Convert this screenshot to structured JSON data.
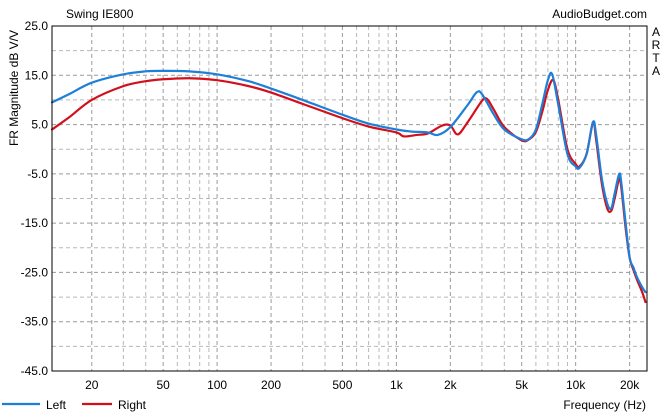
{
  "chart_data": {
    "type": "line",
    "title": "Swing IE800",
    "watermark": "AudioBudget.com",
    "side_label": "ARTA",
    "xlabel": "Frequency (Hz)",
    "ylabel": "FR Magnitude dB V/V",
    "x_scale": "log",
    "xlim": [
      12,
      25000
    ],
    "ylim": [
      -45,
      25
    ],
    "grid": true,
    "legend_position": "bottom-left",
    "y_ticks": [
      "25.0",
      "15.0",
      "5.0",
      "-5.0",
      "-15.0",
      "-25.0",
      "-35.0",
      "-45.0"
    ],
    "y_tick_values": [
      25,
      15,
      5,
      -5,
      -15,
      -25,
      -35,
      -45
    ],
    "x_ticks": [
      "20",
      "50",
      "100",
      "200",
      "500",
      "1k",
      "2k",
      "5k",
      "10k",
      "20k"
    ],
    "x_tick_values": [
      20,
      50,
      100,
      200,
      500,
      1000,
      2000,
      5000,
      10000,
      20000
    ],
    "series": [
      {
        "name": "Left",
        "color": "#1e7fd8",
        "points": [
          [
            12,
            9.5
          ],
          [
            15,
            11.2
          ],
          [
            20,
            13.5
          ],
          [
            30,
            15.2
          ],
          [
            40,
            15.8
          ],
          [
            50,
            15.9
          ],
          [
            70,
            15.8
          ],
          [
            100,
            15.2
          ],
          [
            150,
            13.8
          ],
          [
            200,
            12.3
          ],
          [
            300,
            10.0
          ],
          [
            500,
            7.0
          ],
          [
            700,
            5.2
          ],
          [
            1000,
            4.0
          ],
          [
            1200,
            3.6
          ],
          [
            1500,
            3.4
          ],
          [
            1700,
            2.9
          ],
          [
            2000,
            4.5
          ],
          [
            2500,
            9.0
          ],
          [
            2800,
            11.5
          ],
          [
            3000,
            11.2
          ],
          [
            3500,
            7.0
          ],
          [
            4000,
            4.0
          ],
          [
            5000,
            2.0
          ],
          [
            5500,
            2.1
          ],
          [
            6000,
            4.0
          ],
          [
            6500,
            9.0
          ],
          [
            7000,
            14.0
          ],
          [
            7400,
            15.2
          ],
          [
            8000,
            9.0
          ],
          [
            9000,
            -1.0
          ],
          [
            10000,
            -3.5
          ],
          [
            10500,
            -3.8
          ],
          [
            11500,
            -1.0
          ],
          [
            12500,
            5.5
          ],
          [
            13000,
            3.0
          ],
          [
            14000,
            -6.0
          ],
          [
            15000,
            -11.0
          ],
          [
            15800,
            -12.0
          ],
          [
            16500,
            -9.0
          ],
          [
            17500,
            -5.0
          ],
          [
            18000,
            -7.0
          ],
          [
            19000,
            -15.0
          ],
          [
            20000,
            -22.0
          ],
          [
            21000,
            -24.0
          ],
          [
            22000,
            -26.0
          ],
          [
            23500,
            -28.0
          ],
          [
            24500,
            -29.0
          ]
        ]
      },
      {
        "name": "Right",
        "color": "#d1101c",
        "points": [
          [
            12,
            4.0
          ],
          [
            15,
            6.5
          ],
          [
            20,
            10.0
          ],
          [
            30,
            12.8
          ],
          [
            40,
            13.8
          ],
          [
            50,
            14.2
          ],
          [
            70,
            14.4
          ],
          [
            100,
            14.0
          ],
          [
            150,
            12.8
          ],
          [
            200,
            11.5
          ],
          [
            300,
            9.2
          ],
          [
            500,
            6.3
          ],
          [
            700,
            4.6
          ],
          [
            1000,
            3.4
          ],
          [
            1100,
            2.6
          ],
          [
            1300,
            2.9
          ],
          [
            1500,
            3.2
          ],
          [
            1800,
            4.8
          ],
          [
            2000,
            4.8
          ],
          [
            2200,
            3.0
          ],
          [
            2500,
            5.5
          ],
          [
            3000,
            9.8
          ],
          [
            3200,
            10.2
          ],
          [
            3500,
            8.0
          ],
          [
            4000,
            4.5
          ],
          [
            5000,
            1.8
          ],
          [
            5500,
            2.0
          ],
          [
            6000,
            3.5
          ],
          [
            6500,
            7.5
          ],
          [
            7000,
            12.0
          ],
          [
            7500,
            14.0
          ],
          [
            8000,
            10.0
          ],
          [
            9000,
            0.0
          ],
          [
            10000,
            -3.0
          ],
          [
            10500,
            -3.5
          ],
          [
            11500,
            -1.0
          ],
          [
            12500,
            5.5
          ],
          [
            13000,
            2.0
          ],
          [
            14000,
            -7.0
          ],
          [
            15000,
            -12.0
          ],
          [
            15800,
            -12.5
          ],
          [
            16500,
            -10.0
          ],
          [
            17500,
            -6.0
          ],
          [
            18000,
            -8.0
          ],
          [
            19000,
            -16.0
          ],
          [
            20000,
            -22.0
          ],
          [
            21000,
            -24.5
          ],
          [
            22000,
            -26.5
          ],
          [
            23500,
            -29.0
          ],
          [
            24500,
            -31.0
          ]
        ]
      }
    ]
  }
}
